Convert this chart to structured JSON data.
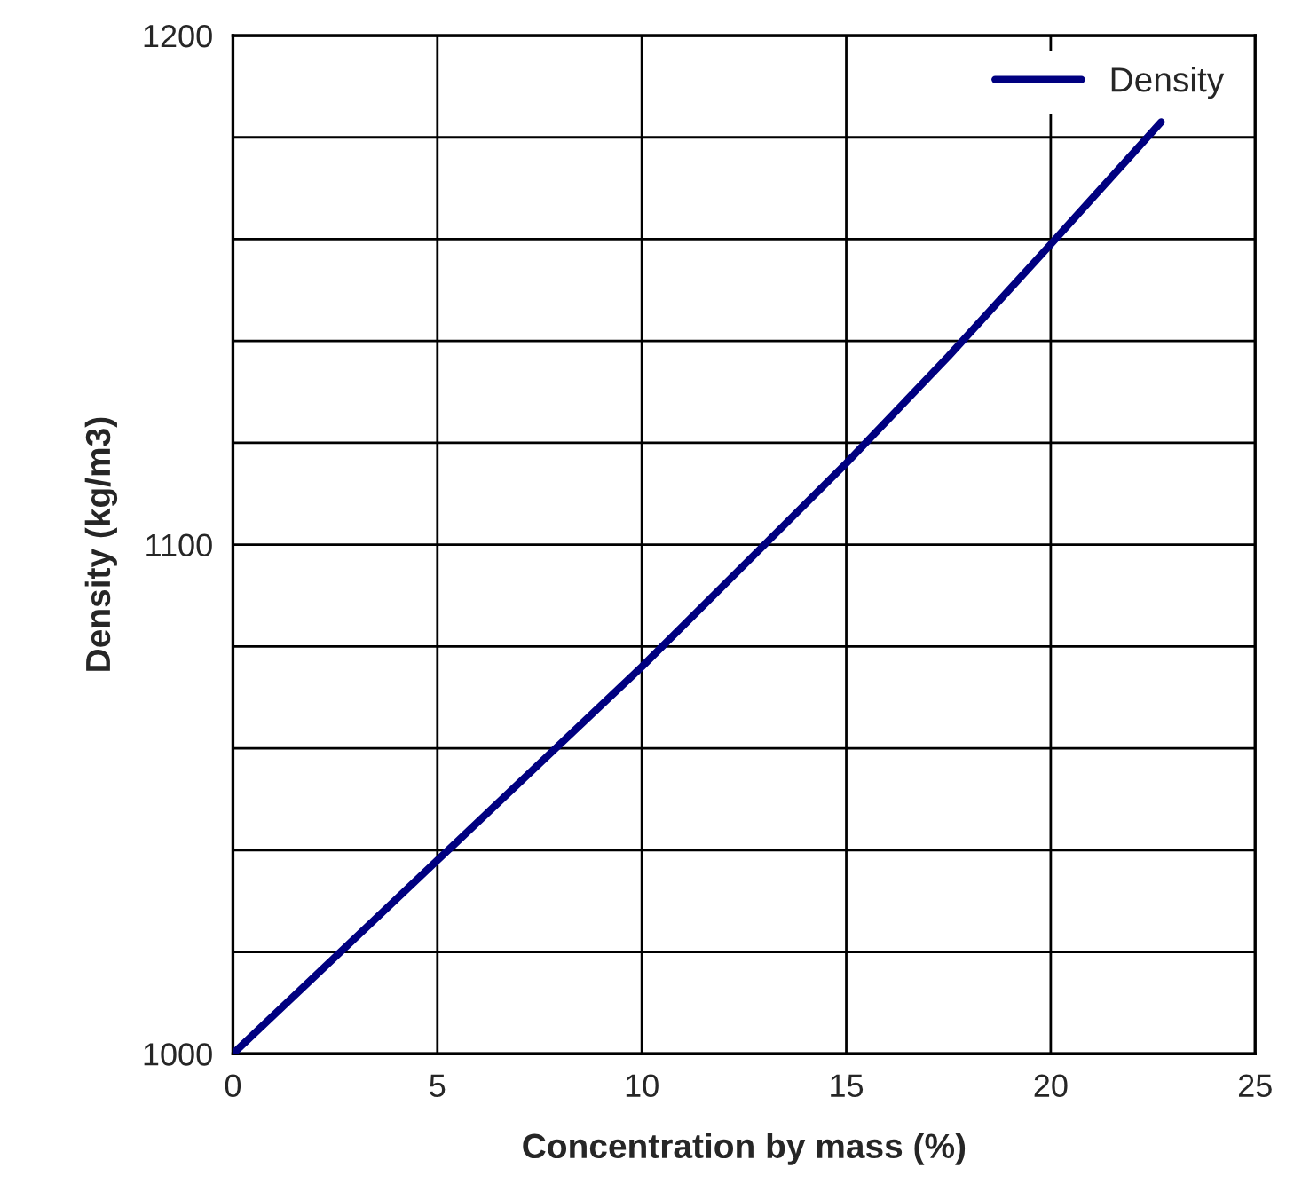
{
  "chart_data": {
    "type": "line",
    "xlabel": "Concentration by mass (%)",
    "ylabel": "Density (kg/m3)",
    "x": [
      0,
      2.5,
      5,
      7.5,
      10,
      12.5,
      15,
      17.5,
      20,
      22.7
    ],
    "series": [
      {
        "name": "Density",
        "color": "#000080",
        "values": [
          1000,
          1019,
          1038,
          1057,
          1076,
          1096,
          1116,
          1137,
          1159,
          1183
        ]
      }
    ],
    "xlim": [
      0,
      25
    ],
    "xticks": [
      0,
      5,
      10,
      15,
      20,
      25
    ],
    "ylim": [
      1000,
      1200
    ],
    "yticks": [
      1000,
      {
        "value": 1020,
        "label": null
      },
      {
        "value": 1040,
        "label": null
      },
      {
        "value": 1060,
        "label": null
      },
      {
        "value": 1080,
        "label": null
      },
      1100,
      {
        "value": 1120,
        "label": null
      },
      {
        "value": 1140,
        "label": null
      },
      {
        "value": 1160,
        "label": null
      },
      {
        "value": 1180,
        "label": null
      },
      1200
    ],
    "grid": true,
    "legend": "top right",
    "marker": "none",
    "line_style": "solid"
  }
}
